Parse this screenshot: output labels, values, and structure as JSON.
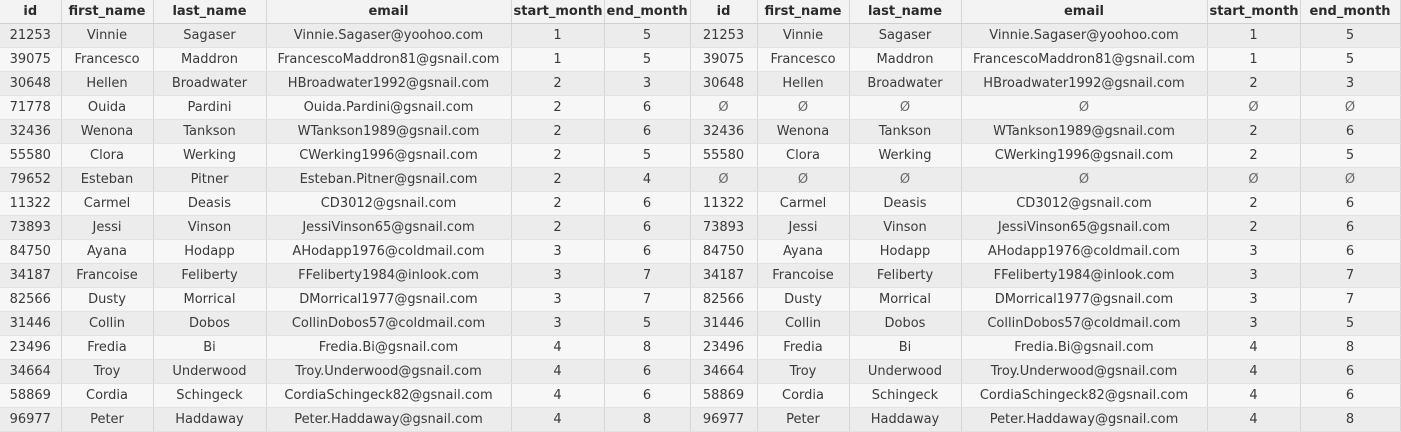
{
  "columns": [
    "id",
    "first_name",
    "last_name",
    "email",
    "start_month",
    "end_month",
    "id",
    "first_name",
    "last_name",
    "email",
    "start_month",
    "end_month"
  ],
  "rows": [
    [
      "21253",
      "Vinnie",
      "Sagaser",
      "Vinnie.Sagaser@yoohoo.com",
      "1",
      "5",
      "21253",
      "Vinnie",
      "Sagaser",
      "Vinnie.Sagaser@yoohoo.com",
      "1",
      "5"
    ],
    [
      "39075",
      "Francesco",
      "Maddron",
      "FrancescoMaddron81@gsnail.com",
      "1",
      "5",
      "39075",
      "Francesco",
      "Maddron",
      "FrancescoMaddron81@gsnail.com",
      "1",
      "5"
    ],
    [
      "30648",
      "Hellen",
      "Broadwater",
      "HBroadwater1992@gsnail.com",
      "2",
      "3",
      "30648",
      "Hellen",
      "Broadwater",
      "HBroadwater1992@gsnail.com",
      "2",
      "3"
    ],
    [
      "71778",
      "Ouida",
      "Pardini",
      "Ouida.Pardini@gsnail.com",
      "2",
      "6",
      "Ø",
      "Ø",
      "Ø",
      "Ø",
      "Ø",
      "Ø"
    ],
    [
      "32436",
      "Wenona",
      "Tankson",
      "WTankson1989@gsnail.com",
      "2",
      "6",
      "32436",
      "Wenona",
      "Tankson",
      "WTankson1989@gsnail.com",
      "2",
      "6"
    ],
    [
      "55580",
      "Clora",
      "Werking",
      "CWerking1996@gsnail.com",
      "2",
      "5",
      "55580",
      "Clora",
      "Werking",
      "CWerking1996@gsnail.com",
      "2",
      "5"
    ],
    [
      "79652",
      "Esteban",
      "Pitner",
      "Esteban.Pitner@gsnail.com",
      "2",
      "4",
      "Ø",
      "Ø",
      "Ø",
      "Ø",
      "Ø",
      "Ø"
    ],
    [
      "11322",
      "Carmel",
      "Deasis",
      "CD3012@gsnail.com",
      "2",
      "6",
      "11322",
      "Carmel",
      "Deasis",
      "CD3012@gsnail.com",
      "2",
      "6"
    ],
    [
      "73893",
      "Jessi",
      "Vinson",
      "JessiVinson65@gsnail.com",
      "2",
      "6",
      "73893",
      "Jessi",
      "Vinson",
      "JessiVinson65@gsnail.com",
      "2",
      "6"
    ],
    [
      "84750",
      "Ayana",
      "Hodapp",
      "AHodapp1976@coldmail.com",
      "3",
      "6",
      "84750",
      "Ayana",
      "Hodapp",
      "AHodapp1976@coldmail.com",
      "3",
      "6"
    ],
    [
      "34187",
      "Francoise",
      "Feliberty",
      "FFeliberty1984@inlook.com",
      "3",
      "7",
      "34187",
      "Francoise",
      "Feliberty",
      "FFeliberty1984@inlook.com",
      "3",
      "7"
    ],
    [
      "82566",
      "Dusty",
      "Morrical",
      "DMorrical1977@gsnail.com",
      "3",
      "7",
      "82566",
      "Dusty",
      "Morrical",
      "DMorrical1977@gsnail.com",
      "3",
      "7"
    ],
    [
      "31446",
      "Collin",
      "Dobos",
      "CollinDobos57@coldmail.com",
      "3",
      "5",
      "31446",
      "Collin",
      "Dobos",
      "CollinDobos57@coldmail.com",
      "3",
      "5"
    ],
    [
      "23496",
      "Fredia",
      "Bi",
      "Fredia.Bi@gsnail.com",
      "4",
      "8",
      "23496",
      "Fredia",
      "Bi",
      "Fredia.Bi@gsnail.com",
      "4",
      "8"
    ],
    [
      "34664",
      "Troy",
      "Underwood",
      "Troy.Underwood@gsnail.com",
      "4",
      "6",
      "34664",
      "Troy",
      "Underwood",
      "Troy.Underwood@gsnail.com",
      "4",
      "6"
    ],
    [
      "58869",
      "Cordia",
      "Schingeck",
      "CordiaSchingeck82@gsnail.com",
      "4",
      "6",
      "58869",
      "Cordia",
      "Schingeck",
      "CordiaSchingeck82@gsnail.com",
      "4",
      "6"
    ],
    [
      "96977",
      "Peter",
      "Haddaway",
      "Peter.Haddaway@gsnail.com",
      "4",
      "8",
      "96977",
      "Peter",
      "Haddaway",
      "Peter.Haddaway@gsnail.com",
      "4",
      "8"
    ]
  ]
}
